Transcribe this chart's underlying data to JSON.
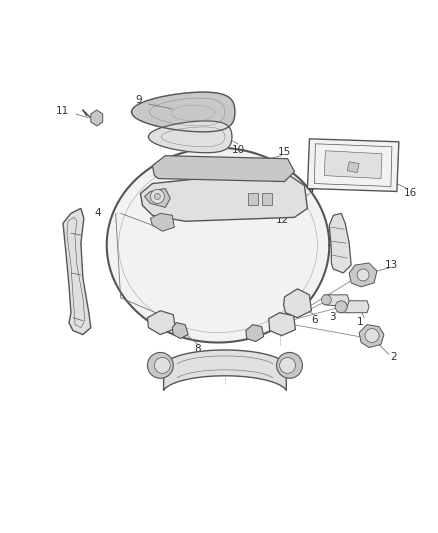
{
  "background_color": "#ffffff",
  "line_color": "#555555",
  "dark_color": "#333333",
  "fill_light": "#f2f2f2",
  "fill_mid": "#e0e0e0",
  "fill_dark": "#c8c8c8",
  "fig_width": 4.38,
  "fig_height": 5.33,
  "dpi": 100
}
